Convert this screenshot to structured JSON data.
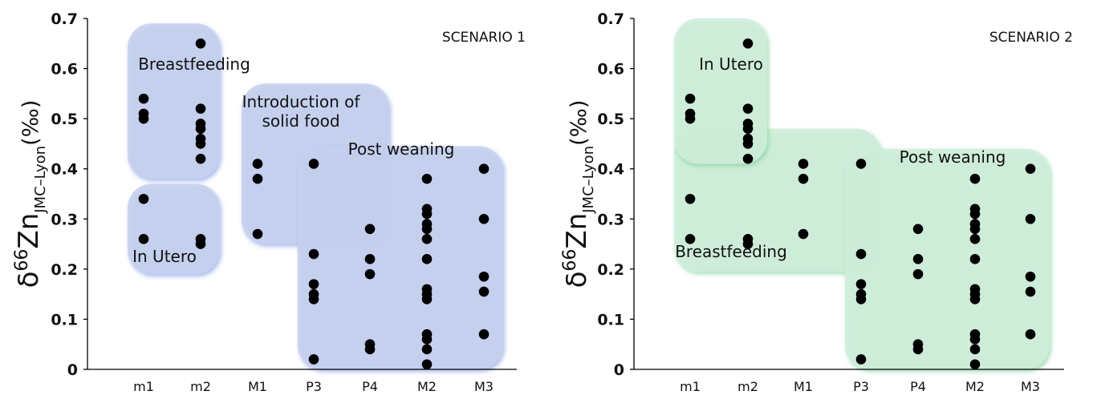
{
  "chart_data": [
    {
      "type": "scatter",
      "title": "SCENARIO 1",
      "ylabel": {
        "prefix": "δ",
        "sup": "66",
        "base": "Zn",
        "sub": "JMC–Lyon",
        "unit": "(‰)"
      },
      "xlabel": "",
      "categories": [
        "m1",
        "m2",
        "M1",
        "P3",
        "P4",
        "M2",
        "M3"
      ],
      "ylim": [
        0,
        0.7
      ],
      "yticks": [
        0,
        0.1,
        0.2,
        0.3,
        0.4,
        0.5,
        0.6,
        0.7
      ],
      "ytick_labels": [
        "0",
        "0.1",
        "0.2",
        "0.3",
        "0.4",
        "0.5",
        "0.6",
        "0.7"
      ],
      "points": {
        "m1": [
          0.54,
          0.51,
          0.5,
          0.34,
          0.26
        ],
        "m2": [
          0.65,
          0.52,
          0.49,
          0.48,
          0.46,
          0.45,
          0.42,
          0.26,
          0.25
        ],
        "M1": [
          0.41,
          0.38,
          0.27
        ],
        "P3": [
          0.41,
          0.23,
          0.17,
          0.15,
          0.14,
          0.02
        ],
        "P4": [
          0.28,
          0.22,
          0.19,
          0.05,
          0.04
        ],
        "M2": [
          0.38,
          0.32,
          0.31,
          0.29,
          0.28,
          0.26,
          0.22,
          0.16,
          0.15,
          0.14,
          0.07,
          0.06,
          0.04,
          0.01
        ],
        "M3": [
          0.4,
          0.3,
          0.185,
          0.155,
          0.07
        ]
      },
      "groups": [
        {
          "name": "Breastfeeding",
          "color": "#c6d2ee",
          "xrange": [
            "m1",
            "m2"
          ],
          "yrange": [
            0.38,
            0.69
          ]
        },
        {
          "name": "In Utero",
          "color": "#c6d2ee",
          "xrange": [
            "m1",
            "m2"
          ],
          "yrange": [
            0.19,
            0.37
          ]
        },
        {
          "name": "Introduction of\nsolid food",
          "color": "#c6d2ee",
          "xrange": [
            "M1",
            "P4"
          ],
          "yrange": [
            0.25,
            0.57
          ]
        },
        {
          "name": "Post weaning",
          "color": "#c6d2ee",
          "xrange": [
            "P3",
            "M3"
          ],
          "yrange": [
            0.0,
            0.445
          ]
        }
      ]
    },
    {
      "type": "scatter",
      "title": "SCENARIO 2",
      "ylabel": {
        "prefix": "δ",
        "sup": "66",
        "base": "Zn",
        "sub": "JMC–Lyon",
        "unit": "(‰)"
      },
      "xlabel": "",
      "categories": [
        "m1",
        "m2",
        "M1",
        "P3",
        "P4",
        "M2",
        "M3"
      ],
      "ylim": [
        0,
        0.7
      ],
      "yticks": [
        0,
        0.1,
        0.2,
        0.3,
        0.4,
        0.5,
        0.6,
        0.7
      ],
      "ytick_labels": [
        "0",
        "0.1",
        "0.2",
        "0.3",
        "0.4",
        "0.5",
        "0.6",
        "0.7"
      ],
      "points": {
        "m1": [
          0.54,
          0.51,
          0.5,
          0.34,
          0.26
        ],
        "m2": [
          0.65,
          0.52,
          0.49,
          0.48,
          0.46,
          0.45,
          0.42,
          0.26,
          0.25
        ],
        "M1": [
          0.41,
          0.38,
          0.27
        ],
        "P3": [
          0.41,
          0.23,
          0.17,
          0.15,
          0.14,
          0.02
        ],
        "P4": [
          0.28,
          0.22,
          0.19,
          0.05,
          0.04
        ],
        "M2": [
          0.38,
          0.32,
          0.31,
          0.29,
          0.28,
          0.26,
          0.22,
          0.16,
          0.15,
          0.14,
          0.07,
          0.06,
          0.04,
          0.01
        ],
        "M3": [
          0.4,
          0.3,
          0.185,
          0.155,
          0.07
        ]
      },
      "groups": [
        {
          "name": "Breastfeeding",
          "color": "#d0eedb",
          "xrange": [
            "m1",
            "P3"
          ],
          "yrange": [
            0.195,
            0.48
          ]
        },
        {
          "name": "In Utero",
          "color": "#d0eedb",
          "xrange": [
            "m1",
            "m2"
          ],
          "yrange": [
            0.41,
            0.7
          ]
        },
        {
          "name": "Post weaning",
          "color": "#d0eedb",
          "xrange": [
            "P3",
            "M3"
          ],
          "yrange": [
            0.0,
            0.44
          ]
        }
      ]
    }
  ]
}
